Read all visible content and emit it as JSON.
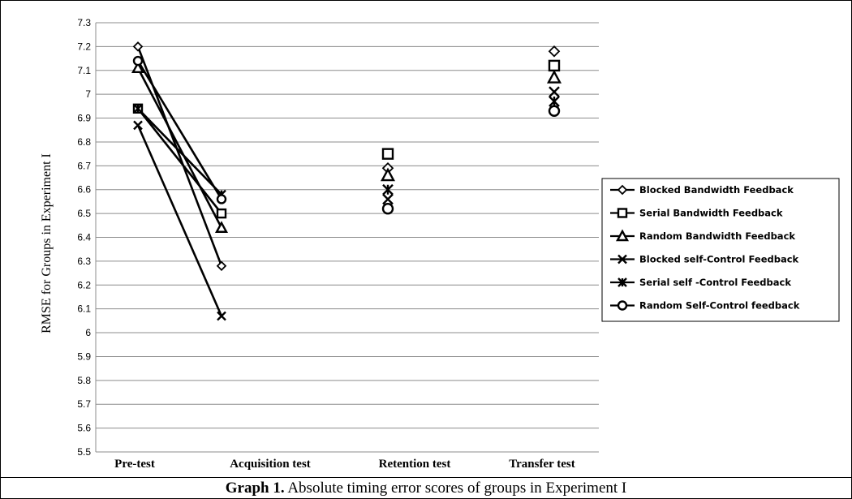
{
  "chart_data": {
    "type": "line",
    "categories": [
      "Pre-test",
      "Acquisition test",
      "Retention test",
      "Transfer test"
    ],
    "ylabel": "RMSE for Groups in Experiment I",
    "xlabel": "",
    "ylim": [
      5.5,
      7.3
    ],
    "ytick_step": 0.1,
    "yticks": [
      "5.5",
      "5.6",
      "5.7",
      "5.8",
      "5.9",
      "6",
      "6.1",
      "6.2",
      "6.3",
      "6.4",
      "6.5",
      "6.6",
      "6.7",
      "6.8",
      "6.9",
      "7",
      "7.1",
      "7.2",
      "7.3"
    ],
    "grid": true,
    "legend_position": "right",
    "series": [
      {
        "name": "Blocked Bandwidth Feedback",
        "marker": "diamond",
        "values": [
          7.2,
          6.28,
          6.69,
          7.18
        ]
      },
      {
        "name": "Serial Bandwidth Feedback",
        "marker": "square",
        "values": [
          6.94,
          6.5,
          6.75,
          7.12
        ]
      },
      {
        "name": "Random Bandwidth Feedback",
        "marker": "triangle",
        "values": [
          7.11,
          6.44,
          6.66,
          7.07
        ]
      },
      {
        "name": "Blocked self-Control Feedback",
        "marker": "x",
        "values": [
          6.87,
          6.07,
          6.56,
          7.01
        ]
      },
      {
        "name": "Serial self -Control Feedback",
        "marker": "asterisk",
        "values": [
          6.94,
          6.58,
          6.6,
          6.97
        ]
      },
      {
        "name": "Random Self-Control feedback",
        "marker": "circle",
        "values": [
          7.14,
          6.56,
          6.52,
          6.93
        ]
      }
    ],
    "connected_segments": [
      [
        0,
        1
      ]
    ]
  },
  "caption": {
    "label": "Graph 1.",
    "text": " Absolute timing error scores of groups in Experiment I"
  }
}
